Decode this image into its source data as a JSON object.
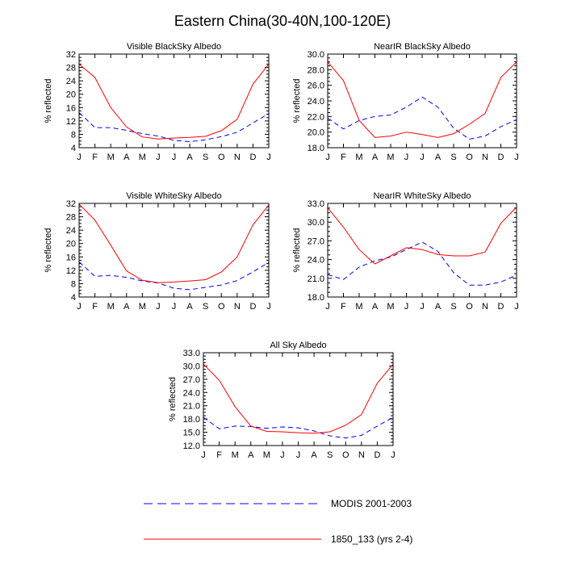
{
  "figure": {
    "title": "Eastern China(30-40N,100-120E)",
    "ylabel": "% reflected",
    "months": [
      "J",
      "F",
      "M",
      "A",
      "M",
      "J",
      "J",
      "A",
      "S",
      "O",
      "N",
      "D",
      "J"
    ]
  },
  "legend": [
    {
      "label": "MODIS 2001-2003",
      "color": "#0000ff",
      "dash": "dashed"
    },
    {
      "label": "1850_133 (yrs 2-4)",
      "color": "#ff0000",
      "dash": "solid"
    }
  ],
  "chart_data": [
    {
      "type": "line",
      "title": "Visible BlackSky Albedo",
      "ylabel": "% reflected",
      "ylim": [
        4,
        32
      ],
      "yticks": [
        "4",
        "8",
        "12",
        "16",
        "20",
        "24",
        "28",
        "32"
      ],
      "categories": [
        "J",
        "F",
        "M",
        "A",
        "M",
        "J",
        "J",
        "A",
        "S",
        "O",
        "N",
        "D",
        "J"
      ],
      "series": [
        {
          "name": "MODIS 2001-2003",
          "values": [
            14.5,
            10.0,
            10.0,
            9.2,
            8.2,
            7.5,
            6.2,
            5.8,
            6.4,
            7.3,
            8.6,
            11.4,
            14.2
          ]
        },
        {
          "name": "1850_133 (yrs 2-4)",
          "values": [
            29.0,
            25.0,
            16.0,
            10.2,
            7.2,
            6.6,
            6.9,
            7.1,
            7.4,
            9.1,
            12.5,
            23.0,
            29.0
          ]
        }
      ]
    },
    {
      "type": "line",
      "title": "NearIR BlackSky Albedo",
      "ylabel": "% reflected",
      "ylim": [
        18,
        30
      ],
      "yticks": [
        "18.0",
        "20.0",
        "22.0",
        "24.0",
        "26.0",
        "28.0",
        "30.0"
      ],
      "categories": [
        "J",
        "F",
        "M",
        "A",
        "M",
        "J",
        "J",
        "A",
        "S",
        "O",
        "N",
        "D",
        "J"
      ],
      "series": [
        {
          "name": "MODIS 2001-2003",
          "values": [
            21.8,
            20.4,
            21.5,
            22.0,
            22.2,
            23.2,
            24.5,
            23.2,
            20.5,
            19.1,
            19.5,
            20.7,
            21.6
          ]
        },
        {
          "name": "1850_133 (yrs 2-4)",
          "values": [
            29.0,
            26.6,
            21.5,
            19.3,
            19.5,
            20.0,
            19.7,
            19.3,
            19.8,
            21.0,
            22.4,
            27.0,
            29.0
          ]
        }
      ]
    },
    {
      "type": "line",
      "title": "Visible WhiteSky Albedo",
      "ylabel": "% reflected",
      "ylim": [
        4,
        32
      ],
      "yticks": [
        "4",
        "8",
        "12",
        "16",
        "20",
        "24",
        "28",
        "32"
      ],
      "categories": [
        "J",
        "F",
        "M",
        "A",
        "M",
        "J",
        "J",
        "A",
        "S",
        "O",
        "N",
        "D",
        "J"
      ],
      "series": [
        {
          "name": "MODIS 2001-2003",
          "values": [
            14.5,
            10.2,
            10.5,
            9.9,
            8.8,
            8.2,
            6.6,
            6.2,
            6.9,
            7.6,
            8.9,
            11.5,
            14.4
          ]
        },
        {
          "name": "1850_133 (yrs 2-4)",
          "values": [
            31.8,
            27.0,
            19.5,
            11.8,
            9.0,
            8.3,
            8.5,
            8.8,
            9.2,
            11.5,
            16.0,
            25.6,
            31.5
          ]
        }
      ]
    },
    {
      "type": "line",
      "title": "NearIR WhiteSky Albedo",
      "ylabel": "% reflected",
      "ylim": [
        18,
        33
      ],
      "yticks": [
        "18.0",
        "21.0",
        "24.0",
        "27.0",
        "30.0",
        "33.0"
      ],
      "categories": [
        "J",
        "F",
        "M",
        "A",
        "M",
        "J",
        "J",
        "A",
        "S",
        "O",
        "N",
        "D",
        "J"
      ],
      "series": [
        {
          "name": "MODIS 2001-2003",
          "values": [
            21.6,
            20.8,
            22.8,
            23.8,
            24.4,
            25.6,
            26.8,
            25.3,
            21.9,
            19.9,
            19.9,
            20.4,
            21.5
          ]
        },
        {
          "name": "1850_133 (yrs 2-4)",
          "values": [
            32.3,
            29.2,
            25.6,
            23.3,
            24.6,
            25.9,
            25.6,
            24.8,
            24.6,
            24.6,
            25.2,
            29.8,
            32.4
          ]
        }
      ]
    },
    {
      "type": "line",
      "title": "All Sky Albedo",
      "ylabel": "% reflected",
      "ylim": [
        12,
        33
      ],
      "yticks": [
        "12.0",
        "15.0",
        "18.0",
        "21.0",
        "24.0",
        "27.0",
        "30.0",
        "33.0"
      ],
      "categories": [
        "J",
        "F",
        "M",
        "A",
        "M",
        "J",
        "J",
        "A",
        "S",
        "O",
        "N",
        "D",
        "J"
      ],
      "series": [
        {
          "name": "MODIS 2001-2003",
          "values": [
            18.4,
            15.8,
            16.4,
            16.3,
            15.9,
            16.2,
            16.0,
            15.3,
            14.2,
            13.7,
            14.3,
            16.4,
            18.4
          ]
        },
        {
          "name": "1850_133 (yrs 2-4)",
          "values": [
            30.4,
            26.8,
            20.8,
            16.4,
            15.2,
            15.1,
            14.9,
            14.8,
            15.1,
            16.6,
            19.0,
            26.1,
            30.4
          ]
        }
      ]
    }
  ]
}
